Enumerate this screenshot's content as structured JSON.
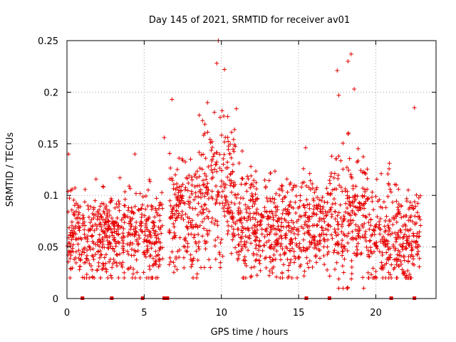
{
  "chart_data": {
    "type": "scatter",
    "title": "Day 145 of 2021, SRMTID for receiver av01",
    "xlabel": "GPS time / hours",
    "ylabel": "SRMTID / TECUs",
    "xlim": [
      0,
      23.9
    ],
    "ylim": [
      0,
      0.25
    ],
    "x_ticks": [
      0,
      5,
      10,
      15,
      20
    ],
    "x_tick_labels": [
      "0",
      "5",
      "10",
      "15",
      "20"
    ],
    "y_ticks": [
      0,
      0.05,
      0.1,
      0.15,
      0.2,
      0.25
    ],
    "y_tick_labels": [
      "0",
      "0.05",
      "0.1",
      "0.15",
      "0.2",
      "0.25"
    ],
    "grid": true,
    "marker": "plus",
    "color": "#e60000",
    "series_name": "SRMTID",
    "data_gap_markers_x": [
      1.0,
      2.9,
      4.9,
      6.3,
      6.5,
      15.5,
      17.0,
      21.0,
      22.5
    ],
    "segments": [
      {
        "x_start": 0.0,
        "x_end": 6.2,
        "level_mean": 0.06,
        "spread": 0.022,
        "min": 0.02,
        "max": 0.14
      },
      {
        "x_start": 6.6,
        "x_end": 8.5,
        "level_mean": 0.08,
        "spread": 0.03,
        "min": 0.02,
        "max": 0.19
      },
      {
        "x_start": 8.5,
        "x_end": 11.0,
        "level_mean": 0.105,
        "spread": 0.035,
        "min": 0.03,
        "max": 0.25
      },
      {
        "x_start": 11.0,
        "x_end": 17.0,
        "level_mean": 0.07,
        "spread": 0.025,
        "min": 0.02,
        "max": 0.17
      },
      {
        "x_start": 17.0,
        "x_end": 19.5,
        "level_mean": 0.08,
        "spread": 0.035,
        "min": 0.01,
        "max": 0.237
      },
      {
        "x_start": 19.5,
        "x_end": 22.9,
        "level_mean": 0.06,
        "spread": 0.025,
        "min": 0.02,
        "max": 0.185
      }
    ],
    "notable_points": [
      {
        "x": 9.8,
        "y": 0.25
      },
      {
        "x": 9.7,
        "y": 0.228
      },
      {
        "x": 10.2,
        "y": 0.222
      },
      {
        "x": 18.4,
        "y": 0.237
      },
      {
        "x": 18.2,
        "y": 0.23
      },
      {
        "x": 17.5,
        "y": 0.221
      },
      {
        "x": 18.6,
        "y": 0.203
      },
      {
        "x": 17.6,
        "y": 0.197
      },
      {
        "x": 22.5,
        "y": 0.185
      },
      {
        "x": 6.8,
        "y": 0.193
      },
      {
        "x": 6.3,
        "y": 0.156
      },
      {
        "x": 4.4,
        "y": 0.14
      },
      {
        "x": 0.1,
        "y": 0.14
      }
    ]
  }
}
